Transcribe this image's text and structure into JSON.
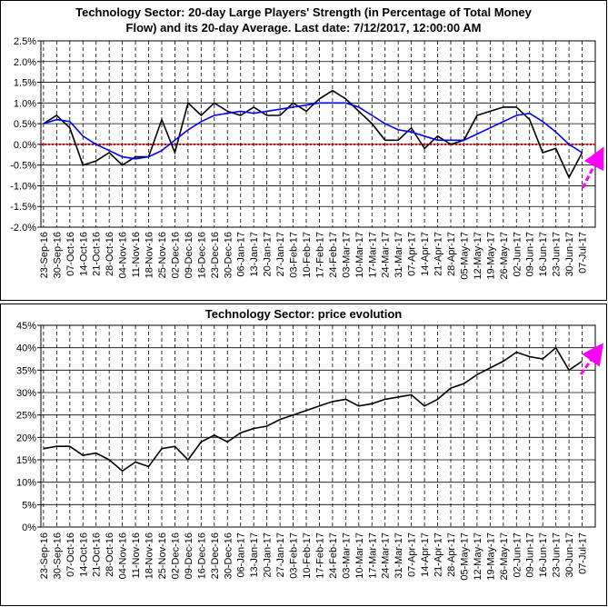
{
  "chart_data": [
    {
      "type": "line",
      "title": [
        "Technology Sector: 20-day Large Players' Strength (in Percentage of Total Money",
        "Flow) and its 20-day Average. Last date: 7/12/2017, 12:00:00 AM"
      ],
      "categories": [
        "23-Sep-16",
        "30-Sep-16",
        "07-Oct-16",
        "14-Oct-16",
        "21-Oct-16",
        "28-Oct-16",
        "04-Nov-16",
        "11-Nov-16",
        "18-Nov-16",
        "25-Nov-16",
        "02-Dec-16",
        "09-Dec-16",
        "16-Dec-16",
        "23-Dec-16",
        "30-Dec-16",
        "06-Jan-17",
        "13-Jan-17",
        "20-Jan-17",
        "27-Jan-17",
        "03-Feb-17",
        "10-Feb-17",
        "17-Feb-17",
        "24-Feb-17",
        "03-Mar-17",
        "10-Mar-17",
        "17-Mar-17",
        "24-Mar-17",
        "31-Mar-17",
        "07-Apr-17",
        "14-Apr-17",
        "21-Apr-17",
        "28-Apr-17",
        "05-May-17",
        "12-May-17",
        "19-May-17",
        "26-May-17",
        "02-Jun-17",
        "09-Jun-17",
        "16-Jun-17",
        "23-Jun-17",
        "30-Jun-17",
        "07-Jul-17"
      ],
      "series": [
        {
          "color": "#000000",
          "values": [
            0.5,
            0.7,
            0.4,
            -0.5,
            -0.4,
            -0.2,
            -0.5,
            -0.3,
            -0.3,
            0.6,
            -0.2,
            1.0,
            0.7,
            1.0,
            0.8,
            0.7,
            0.9,
            0.7,
            0.7,
            1.0,
            0.8,
            1.1,
            1.3,
            1.1,
            0.8,
            0.5,
            0.1,
            0.1,
            0.4,
            -0.1,
            0.2,
            0.0,
            0.1,
            0.7,
            0.8,
            0.9,
            0.9,
            0.6,
            -0.2,
            -0.1,
            -0.8,
            -0.2
          ]
        },
        {
          "color": "#0000ff",
          "values": [
            0.5,
            0.6,
            0.55,
            0.2,
            0.0,
            -0.15,
            -0.3,
            -0.35,
            -0.3,
            -0.15,
            0.1,
            0.35,
            0.55,
            0.7,
            0.75,
            0.8,
            0.75,
            0.8,
            0.85,
            0.9,
            0.95,
            1.0,
            1.0,
            1.0,
            0.9,
            0.7,
            0.5,
            0.35,
            0.3,
            0.2,
            0.1,
            0.1,
            0.1,
            0.25,
            0.4,
            0.55,
            0.7,
            0.75,
            0.55,
            0.3,
            0.0,
            -0.2
          ]
        }
      ],
      "ylim": [
        -2.0,
        2.5
      ],
      "yticks": [
        {
          "value": -2.0,
          "label": "-2.0%"
        },
        {
          "value": -1.5,
          "label": "-1.5%"
        },
        {
          "value": -1.0,
          "label": "-1.0%"
        },
        {
          "value": -0.5,
          "label": "-0.5%"
        },
        {
          "value": 0.0,
          "label": "0.0%"
        },
        {
          "value": 0.5,
          "label": "0.5%"
        },
        {
          "value": 1.0,
          "label": "1.0%"
        },
        {
          "value": 1.5,
          "label": "1.5%"
        },
        {
          "value": 2.0,
          "label": "2.0%"
        },
        {
          "value": 2.5,
          "label": "2.5%"
        }
      ],
      "reference_line": {
        "value": 0,
        "color": "#cc0000"
      },
      "grid": true
    },
    {
      "type": "line",
      "title": [
        "Technology Sector: price evolution"
      ],
      "categories": [
        "23-Sep-16",
        "30-Sep-16",
        "07-Oct-16",
        "14-Oct-16",
        "21-Oct-16",
        "28-Oct-16",
        "04-Nov-16",
        "11-Nov-16",
        "18-Nov-16",
        "25-Nov-16",
        "02-Dec-16",
        "09-Dec-16",
        "16-Dec-16",
        "23-Dec-16",
        "30-Dec-16",
        "06-Jan-17",
        "13-Jan-17",
        "20-Jan-17",
        "27-Jan-17",
        "03-Feb-17",
        "10-Feb-17",
        "17-Feb-17",
        "24-Feb-17",
        "03-Mar-17",
        "10-Mar-17",
        "17-Mar-17",
        "24-Mar-17",
        "31-Mar-17",
        "07-Apr-17",
        "14-Apr-17",
        "21-Apr-17",
        "28-Apr-17",
        "05-May-17",
        "12-May-17",
        "19-May-17",
        "26-May-17",
        "02-Jun-17",
        "09-Jun-17",
        "16-Jun-17",
        "23-Jun-17",
        "30-Jun-17",
        "07-Jul-17"
      ],
      "series": [
        {
          "color": "#000000",
          "values": [
            17.5,
            18,
            18,
            16,
            16.5,
            15,
            12.5,
            14.5,
            13.5,
            17.5,
            18,
            15,
            19,
            20.5,
            19,
            21,
            22,
            22.5,
            24,
            25,
            26,
            27,
            28,
            28.5,
            27,
            27.5,
            28.5,
            29,
            29.5,
            27,
            28.5,
            31,
            32,
            34,
            35.5,
            37,
            39,
            38,
            37.5,
            40,
            35,
            37
          ]
        }
      ],
      "ylim": [
        0,
        45
      ],
      "yticks": [
        {
          "value": 0,
          "label": "0%"
        },
        {
          "value": 5,
          "label": "5%"
        },
        {
          "value": 10,
          "label": "10%"
        },
        {
          "value": 15,
          "label": "15%"
        },
        {
          "value": 20,
          "label": "20%"
        },
        {
          "value": 25,
          "label": "25%"
        },
        {
          "value": 30,
          "label": "30%"
        },
        {
          "value": 35,
          "label": "35%"
        },
        {
          "value": 40,
          "label": "40%"
        },
        {
          "value": 45,
          "label": "45%"
        }
      ],
      "grid": true
    }
  ]
}
